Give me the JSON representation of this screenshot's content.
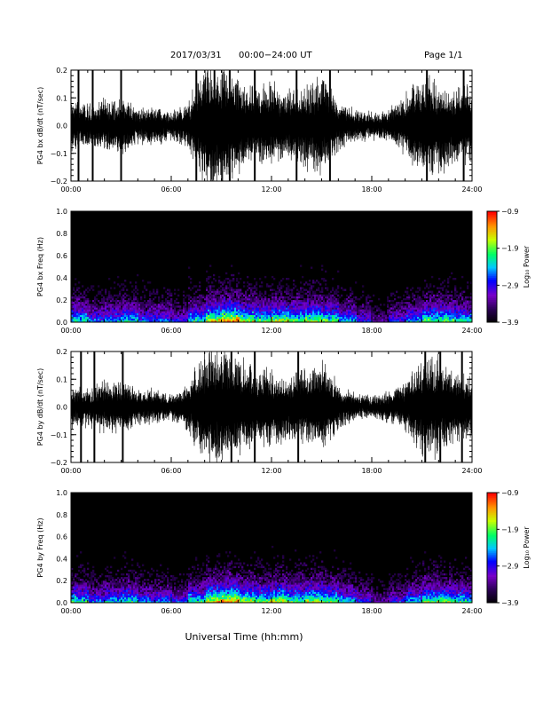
{
  "header": {
    "date": "2017/03/31",
    "range": "00:00−24:00 UT",
    "page": "Page 1/1"
  },
  "chart_data": [
    {
      "type": "line",
      "ylabel": "PG4 bx dB/dt (nT/sec)",
      "ylim": [
        -0.2,
        0.2
      ],
      "yticks": [
        "0.2",
        "0.1",
        "0.0",
        "−0.1",
        "−0.2"
      ],
      "xlim": [
        0,
        24
      ],
      "xticks": [
        "00:00",
        "06:00",
        "12:00",
        "18:00",
        "24:00"
      ],
      "series": [
        {
          "amplitude_hourly": [
            0.1,
            0.08,
            0.1,
            0.12,
            0.07,
            0.08,
            0.05,
            0.09,
            0.24,
            0.24,
            0.2,
            0.15,
            0.17,
            0.14,
            0.16,
            0.22,
            0.1,
            0.06,
            0.05,
            0.06,
            0.12,
            0.2,
            0.2,
            0.16
          ],
          "spikes": [
            {
              "t": 0.45,
              "a": 0.24
            },
            {
              "t": 1.3,
              "a": 0.24
            },
            {
              "t": 3.0,
              "a": 0.24
            },
            {
              "t": 7.5,
              "a": 0.24
            },
            {
              "t": 9.5,
              "a": 0.24
            },
            {
              "t": 11.0,
              "a": 0.24
            },
            {
              "t": 13.5,
              "a": 0.24
            },
            {
              "t": 15.5,
              "a": 0.2
            },
            {
              "t": 21.3,
              "a": 0.24
            },
            {
              "t": 23.5,
              "a": 0.24
            }
          ]
        }
      ]
    },
    {
      "type": "heatmap",
      "ylabel": "PG4 bx Freq (Hz)",
      "ylim": [
        0.0,
        1.0
      ],
      "yticks": [
        "1.0",
        "0.8",
        "0.6",
        "0.4",
        "0.2",
        "0.0"
      ],
      "xlim": [
        0,
        24
      ],
      "xticks": [
        "00:00",
        "06:00",
        "12:00",
        "18:00",
        "24:00"
      ],
      "colorbar": {
        "label": "Log₁₀ Power",
        "range": [
          -3.9,
          -0.9
        ],
        "ticks": [
          "−0.9",
          "−1.9",
          "−2.9",
          "−3.9"
        ]
      },
      "activity_hourly": [
        0.45,
        0.35,
        0.4,
        0.45,
        0.35,
        0.35,
        0.3,
        0.45,
        0.6,
        0.65,
        0.55,
        0.5,
        0.55,
        0.5,
        0.55,
        0.5,
        0.4,
        0.3,
        0.2,
        0.3,
        0.4,
        0.5,
        0.5,
        0.45
      ]
    },
    {
      "type": "line",
      "ylabel": "PG4 by dB/dt (nT/sec)",
      "ylim": [
        -0.2,
        0.2
      ],
      "yticks": [
        "0.2",
        "0.1",
        "0.0",
        "−0.1",
        "−0.2"
      ],
      "xlim": [
        0,
        24
      ],
      "xticks": [
        "00:00",
        "06:00",
        "12:00",
        "18:00",
        "24:00"
      ],
      "series": [
        {
          "amplitude_hourly": [
            0.08,
            0.07,
            0.1,
            0.11,
            0.07,
            0.07,
            0.05,
            0.09,
            0.24,
            0.24,
            0.2,
            0.15,
            0.16,
            0.14,
            0.15,
            0.18,
            0.09,
            0.05,
            0.04,
            0.06,
            0.1,
            0.2,
            0.2,
            0.14
          ],
          "spikes": [
            {
              "t": 0.6,
              "a": 0.24
            },
            {
              "t": 1.4,
              "a": 0.24
            },
            {
              "t": 3.1,
              "a": 0.24
            },
            {
              "t": 9.6,
              "a": 0.24
            },
            {
              "t": 11.0,
              "a": 0.24
            },
            {
              "t": 13.6,
              "a": 0.22
            },
            {
              "t": 21.2,
              "a": 0.24
            },
            {
              "t": 22.1,
              "a": 0.24
            },
            {
              "t": 23.4,
              "a": 0.24
            }
          ]
        }
      ]
    },
    {
      "type": "heatmap",
      "ylabel": "PG4 by Freq (Hz)",
      "ylim": [
        0.0,
        1.0
      ],
      "yticks": [
        "1.0",
        "0.8",
        "0.6",
        "0.4",
        "0.2",
        "0.0"
      ],
      "xlim": [
        0,
        24
      ],
      "xticks": [
        "00:00",
        "06:00",
        "12:00",
        "18:00",
        "24:00"
      ],
      "colorbar": {
        "label": "Log₁₀ Power",
        "range": [
          -3.9,
          -0.9
        ],
        "ticks": [
          "−0.9",
          "−1.9",
          "−2.9",
          "−3.9"
        ]
      },
      "activity_hourly": [
        0.45,
        0.35,
        0.4,
        0.45,
        0.35,
        0.35,
        0.3,
        0.45,
        0.6,
        0.65,
        0.55,
        0.5,
        0.55,
        0.5,
        0.55,
        0.5,
        0.4,
        0.3,
        0.2,
        0.3,
        0.4,
        0.5,
        0.5,
        0.45
      ]
    }
  ],
  "xlabel": "Universal Time (hh:mm)"
}
